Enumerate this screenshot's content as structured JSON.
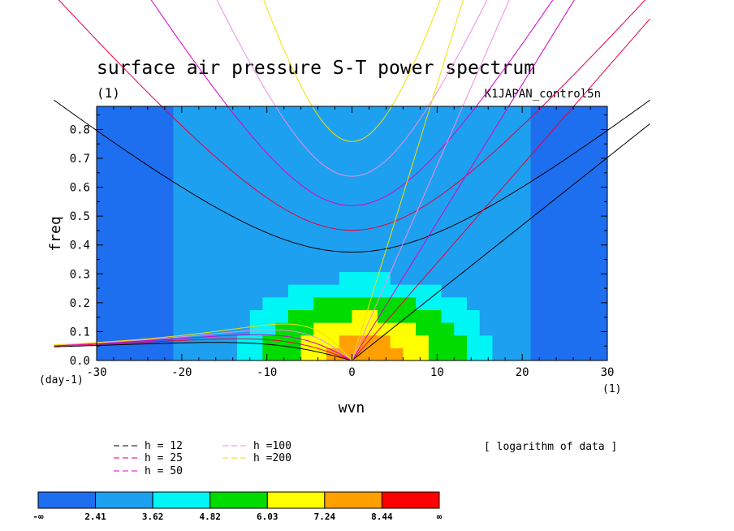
{
  "chart_data": {
    "type": "heatmap",
    "title": "surface air pressure S-T power spectrum",
    "unit_top_left": "(1)",
    "experiment": "K1JAPAN_control5n",
    "xlabel": "wvn",
    "ylabel": "freq",
    "x_unit": "(1)",
    "y_unit": "(day-1)",
    "xlim": [
      -30,
      30
    ],
    "ylim": [
      0,
      0.88
    ],
    "x_ticks": [
      -30,
      -20,
      -10,
      0,
      10,
      20,
      30
    ],
    "y_ticks": [
      0.0,
      0.1,
      0.2,
      0.3,
      0.4,
      0.5,
      0.6,
      0.7,
      0.8
    ],
    "contour_levels": [
      "-∞",
      "2.41",
      "3.62",
      "4.82",
      "6.03",
      "7.24",
      "8.44",
      "∞"
    ],
    "level_colors": [
      "#1e6ef0",
      "#1ea0f0",
      "#00f5f5",
      "#00dc00",
      "#ffff00",
      "#ffa000",
      "#ff0000"
    ],
    "note": "[ logarithm of data ]",
    "dispersion_curves": [
      {
        "name": "h = 12",
        "equivalent_depth_m": 12,
        "color": "#000000"
      },
      {
        "name": "h = 25",
        "equivalent_depth_m": 25,
        "color": "#e8003c"
      },
      {
        "name": "h = 50",
        "equivalent_depth_m": 50,
        "color": "#d800c8"
      },
      {
        "name": "h =100",
        "equivalent_depth_m": 100,
        "color": "#f08ce6"
      },
      {
        "name": "h =200",
        "equivalent_depth_m": 200,
        "color": "#f0e000"
      }
    ]
  }
}
